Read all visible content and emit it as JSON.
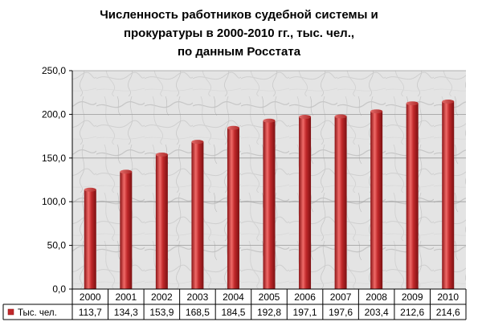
{
  "chart_data": {
    "type": "bar",
    "title": [
      "Численность работников судебной системы и",
      "прокуратуры в 2000-2010 гг., тыс. чел.,",
      "по данным Росстата"
    ],
    "categories": [
      "2000",
      "2001",
      "2002",
      "2003",
      "2004",
      "2005",
      "2006",
      "2007",
      "2008",
      "2009",
      "2010"
    ],
    "series": [
      {
        "name": "Тыс. чел.",
        "values": [
          113.7,
          134.3,
          153.9,
          168.5,
          184.5,
          192.8,
          197.1,
          197.6,
          203.4,
          212.6,
          214.6
        ],
        "labels": [
          "113,7",
          "134,3",
          "153,9",
          "168,5",
          "184,5",
          "192,8",
          "197,1",
          "197,6",
          "203,4",
          "212,6",
          "214,6"
        ]
      }
    ],
    "yticks": [
      "0,0",
      "50,0",
      "100,0",
      "150,0",
      "200,0",
      "250,0"
    ],
    "ylim": [
      0,
      250
    ],
    "grid": true,
    "legend": "data-table-bottom",
    "colors": {
      "bar": "#c0282a",
      "bar_dark": "#8c1416",
      "bar_light": "#ef6a68"
    }
  }
}
